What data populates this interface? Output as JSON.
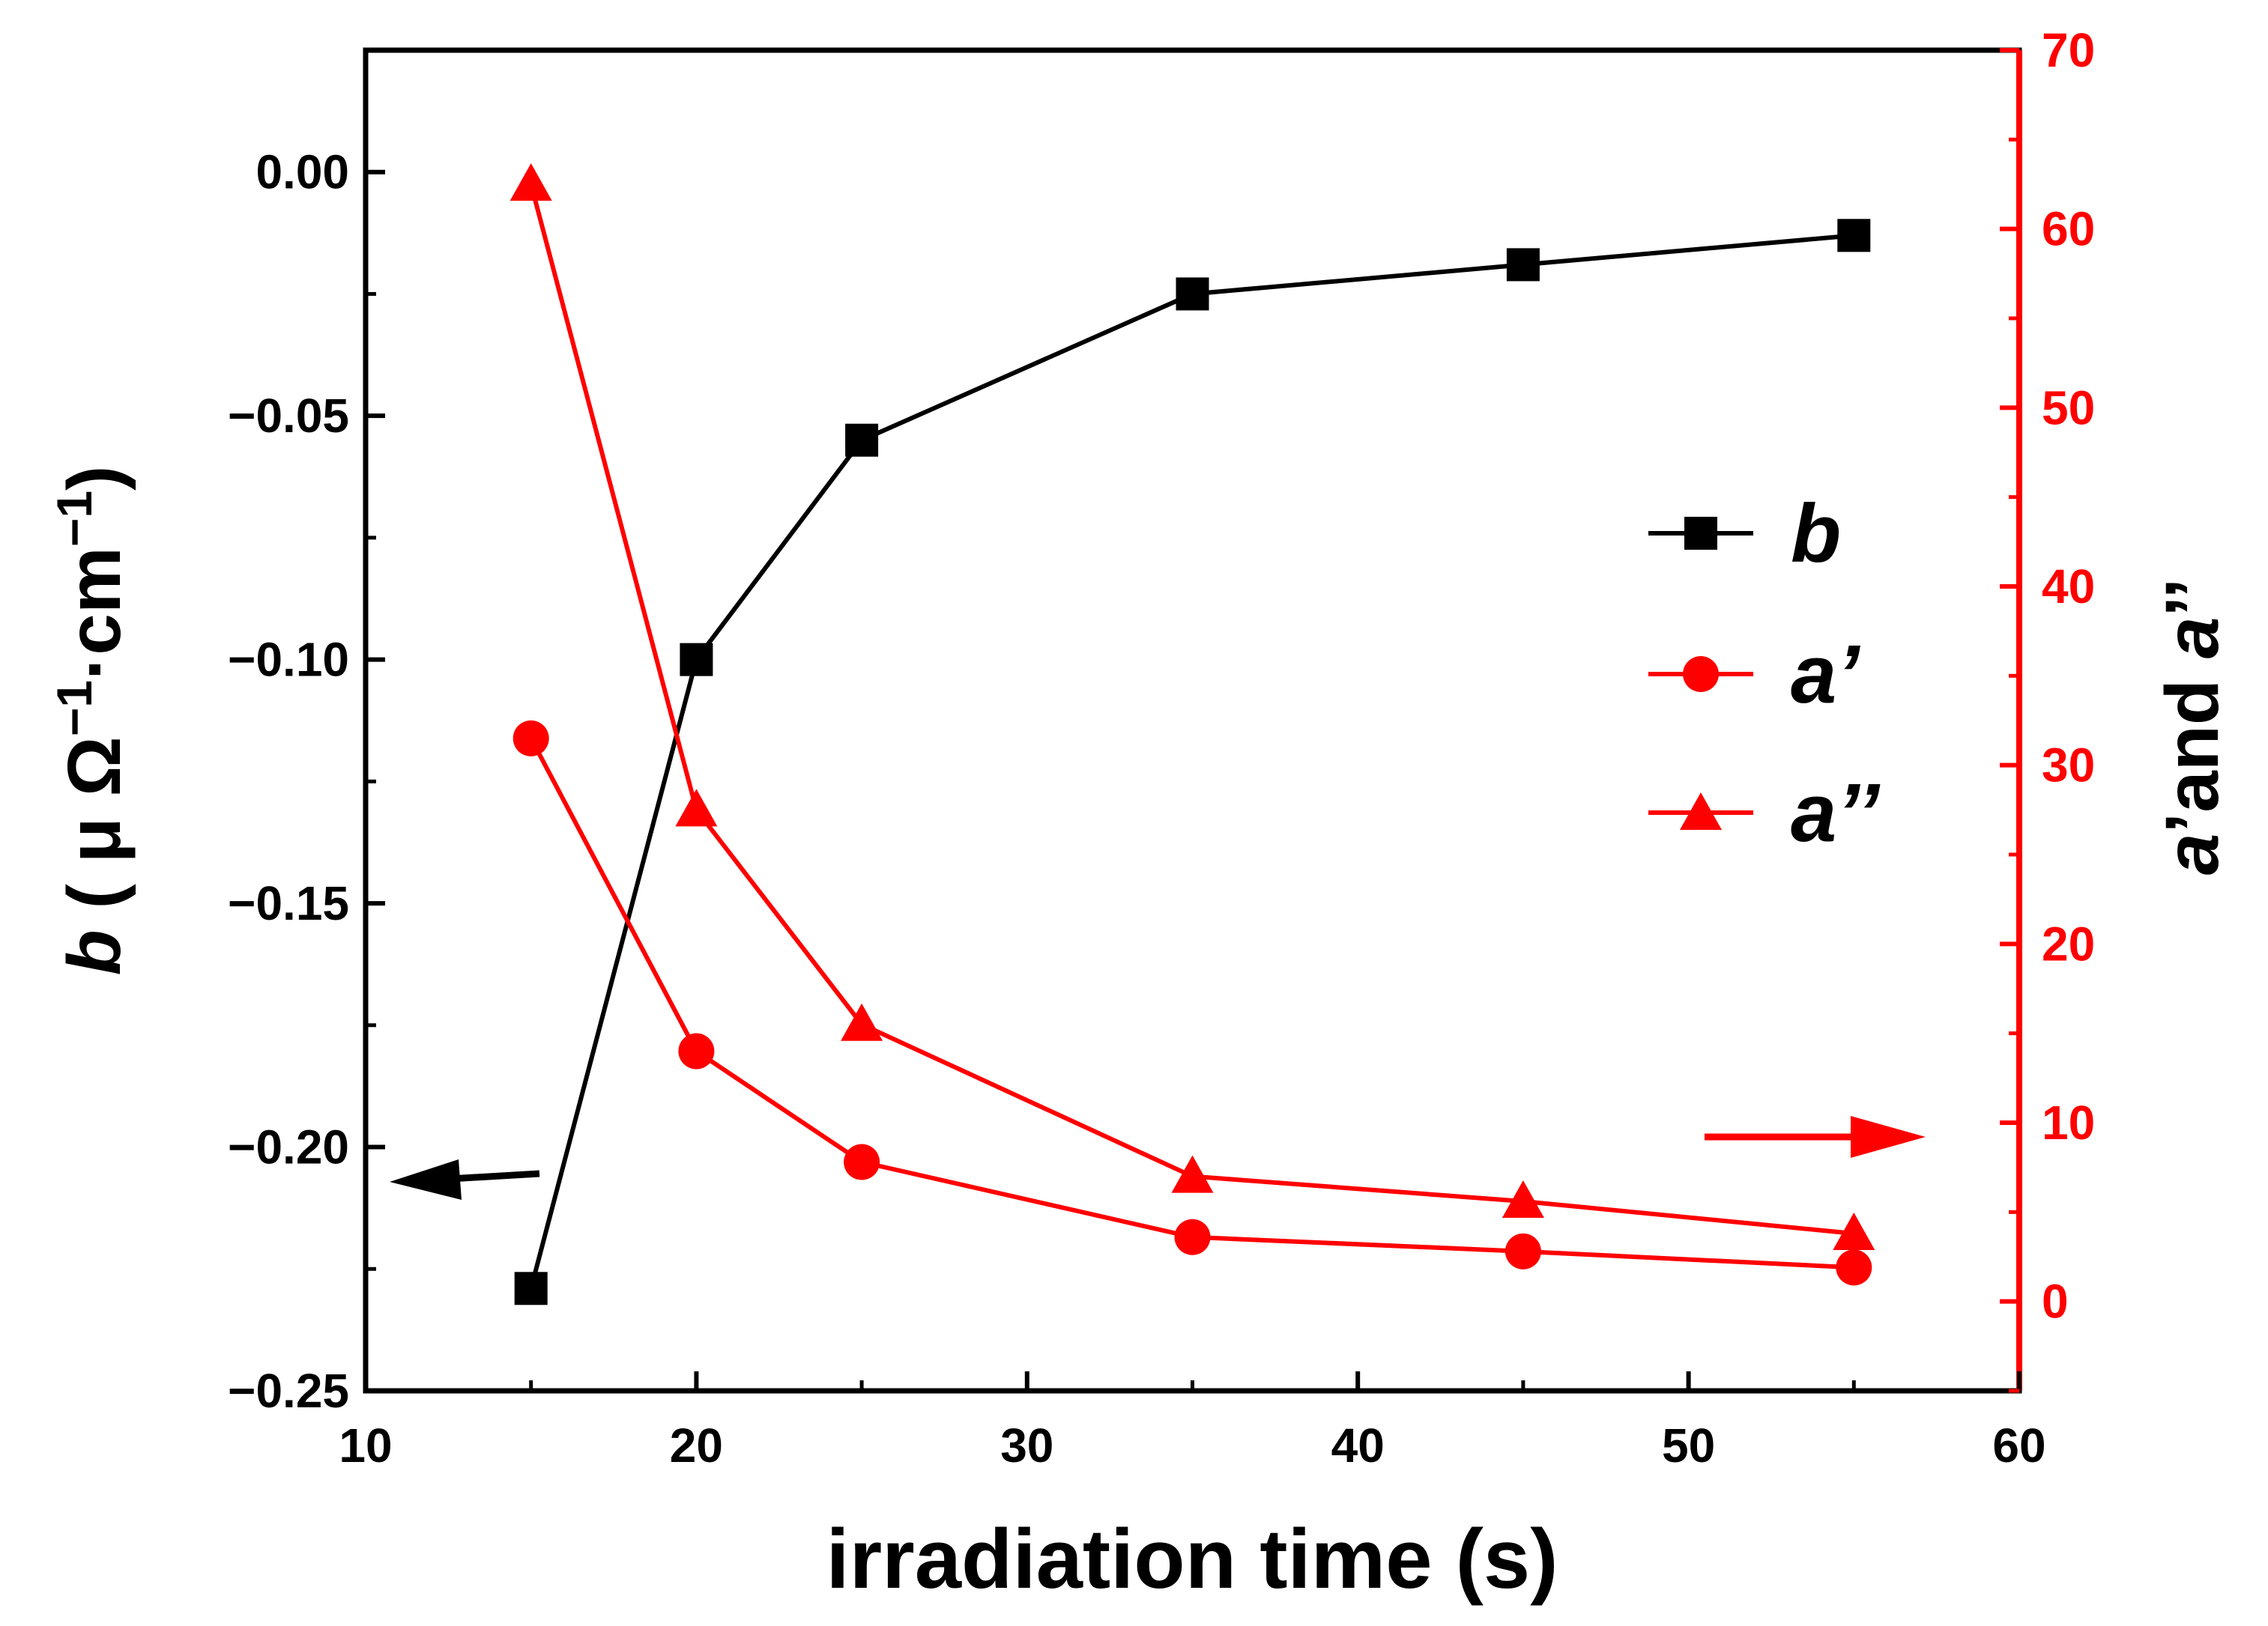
{
  "chart_data": {
    "type": "line",
    "xlabel": "irradiation time (s)",
    "xlim": [
      10,
      60
    ],
    "xticks": [
      10,
      20,
      30,
      40,
      50,
      60
    ],
    "xtick_labels": [
      "10",
      "20",
      "30",
      "40",
      "50",
      "60"
    ],
    "ylabel_left": {
      "symbol": "b",
      "open": " ( μ Ω",
      "exp1": "−1",
      "mid": "·cm",
      "exp2": "−1",
      "close": ")"
    },
    "ylim_left": [
      -0.25,
      0.025
    ],
    "yticks_left": [
      0.0,
      -0.05,
      -0.1,
      -0.15,
      -0.2,
      -0.25
    ],
    "ytick_labels_left": [
      "0.00",
      "−0.05",
      "−0.10",
      "−0.15",
      "−0.20",
      "−0.25"
    ],
    "ylabel_right": {
      "part1": "a",
      "part2": "’and ",
      "part3": "a",
      "part4": "’’"
    },
    "ylim_right": [
      -5,
      70
    ],
    "yticks_right": [
      0,
      10,
      20,
      30,
      40,
      50,
      60,
      70
    ],
    "ytick_labels_right": [
      "0",
      "10",
      "20",
      "30",
      "40",
      "50",
      "60",
      "70"
    ],
    "x": [
      15,
      20,
      25,
      35,
      45,
      55
    ],
    "series": [
      {
        "name": "b",
        "axis": "left",
        "marker": "square",
        "color": "#000000",
        "values": [
          -0.229,
          -0.1,
          -0.055,
          -0.025,
          -0.019,
          -0.013
        ]
      },
      {
        "name": "a’",
        "axis": "right",
        "marker": "circle",
        "color": "#ff0000",
        "values": [
          31.5,
          14.0,
          7.8,
          3.6,
          2.8,
          1.9
        ]
      },
      {
        "name": "a’’",
        "axis": "right",
        "marker": "triangle",
        "color": "#ff0000",
        "values": [
          62.5,
          27.5,
          15.5,
          7.0,
          5.6,
          3.8
        ]
      }
    ],
    "legend": {
      "placement": "center-right",
      "labels": [
        "b",
        "a’",
        "a’’"
      ]
    },
    "annotations": [
      {
        "type": "arrow",
        "direction": "left",
        "meaning": "b series uses left axis"
      },
      {
        "type": "arrow",
        "direction": "right",
        "meaning": "a series use right axis"
      }
    ],
    "colors": {
      "left_axis": "#000000",
      "right_axis": "#ff0000"
    }
  }
}
